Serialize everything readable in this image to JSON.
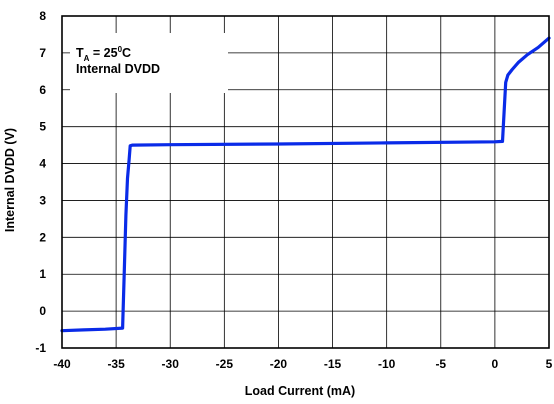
{
  "chart_data": {
    "type": "line",
    "xlabel": "Load Current (mA)",
    "ylabel": "Internal DVDD (V)",
    "xlim": [
      -40,
      5
    ],
    "ylim": [
      -1,
      8
    ],
    "xticks": [
      -40,
      -35,
      -30,
      -25,
      -20,
      -15,
      -10,
      -5,
      0,
      5
    ],
    "yticks": [
      -1,
      0,
      1,
      2,
      3,
      4,
      5,
      6,
      7,
      8
    ],
    "grid": true,
    "annotation": {
      "t": "T",
      "sub": "A",
      "eq": " = 25",
      "sup": "0",
      "unit": "C",
      "line2": "Internal DVDD"
    },
    "series": [
      {
        "color": "#0a2be8",
        "x": [
          -40,
          -38,
          -36,
          -34.4,
          -34.25,
          -34.1,
          -33.95,
          -33.8,
          -33.7,
          -33.5,
          -30,
          -20,
          -10,
          0,
          0.7,
          0.85,
          1.0,
          1.2,
          1.6,
          2.2,
          3.0,
          4.0,
          5.0
        ],
        "y": [
          -0.53,
          -0.51,
          -0.49,
          -0.46,
          1.0,
          2.6,
          3.6,
          4.1,
          4.48,
          4.5,
          4.51,
          4.53,
          4.56,
          4.59,
          4.6,
          5.4,
          6.2,
          6.4,
          6.55,
          6.75,
          6.95,
          7.15,
          7.4
        ]
      }
    ]
  }
}
